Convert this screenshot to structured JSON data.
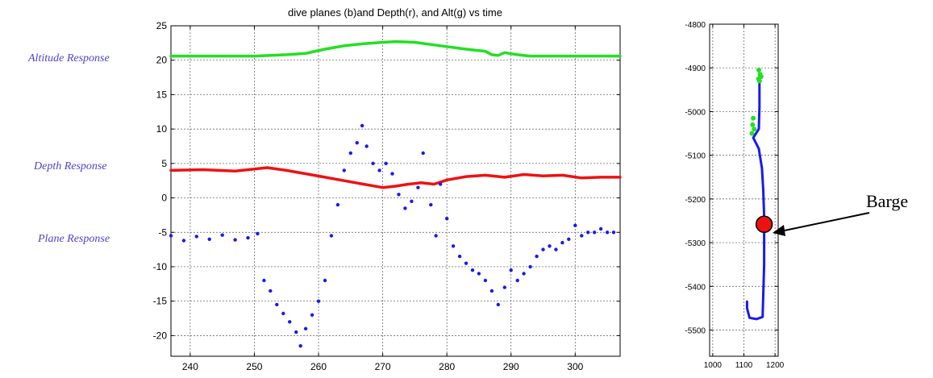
{
  "labels": {
    "altitude": "Altitude Response",
    "depth": "Depth Response",
    "plane": "Plane Response",
    "barge": "Barge"
  },
  "colors": {
    "altitude": "#22e022",
    "depth": "#ee1111",
    "plane": "#1a1aee",
    "barge": "#ee1111",
    "label": "#4b45c8"
  },
  "chart_data": [
    {
      "type": "scatter",
      "title": "dive planes (b)and Depth(r), and Alt(g) vs time",
      "xlim": [
        237,
        307
      ],
      "ylim": [
        -23,
        25
      ],
      "xticks": [
        240,
        250,
        260,
        270,
        280,
        290,
        300
      ],
      "yticks": [
        -20,
        -15,
        -10,
        -5,
        0,
        5,
        10,
        15,
        20,
        25
      ],
      "grid": true,
      "series": [
        {
          "key": "altitude",
          "style": "line",
          "points": [
            [
              237,
              20.6
            ],
            [
              245,
              20.6
            ],
            [
              250,
              20.6
            ],
            [
              255,
              20.8
            ],
            [
              258,
              21.0
            ],
            [
              261,
              21.6
            ],
            [
              264,
              22.1
            ],
            [
              267,
              22.4
            ],
            [
              270,
              22.6
            ],
            [
              272,
              22.7
            ],
            [
              275,
              22.6
            ],
            [
              279,
              22.1
            ],
            [
              283,
              21.6
            ],
            [
              286,
              21.3
            ],
            [
              287,
              20.8
            ],
            [
              288,
              20.7
            ],
            [
              289,
              21.1
            ],
            [
              291,
              20.8
            ],
            [
              293,
              20.6
            ],
            [
              300,
              20.6
            ],
            [
              307,
              20.6
            ]
          ]
        },
        {
          "key": "depth",
          "style": "line",
          "points": [
            [
              237,
              4.0
            ],
            [
              242,
              4.1
            ],
            [
              247,
              3.9
            ],
            [
              250,
              4.2
            ],
            [
              252,
              4.4
            ],
            [
              255,
              4.0
            ],
            [
              258,
              3.5
            ],
            [
              261,
              3.0
            ],
            [
              264,
              2.5
            ],
            [
              267,
              2.0
            ],
            [
              270,
              1.5
            ],
            [
              272,
              1.7
            ],
            [
              274,
              2.0
            ],
            [
              276,
              2.2
            ],
            [
              278,
              2.0
            ],
            [
              280,
              2.6
            ],
            [
              283,
              3.1
            ],
            [
              286,
              3.3
            ],
            [
              289,
              3.0
            ],
            [
              292,
              3.4
            ],
            [
              295,
              3.2
            ],
            [
              298,
              3.3
            ],
            [
              301,
              2.9
            ],
            [
              304,
              3.0
            ],
            [
              307,
              3.0
            ]
          ]
        },
        {
          "key": "plane",
          "style": "dots",
          "points": [
            [
              237,
              -5.5
            ],
            [
              239,
              -6.2
            ],
            [
              241,
              -5.6
            ],
            [
              243,
              -6.0
            ],
            [
              245,
              -5.4
            ],
            [
              247,
              -6.1
            ],
            [
              249,
              -5.8
            ],
            [
              250.5,
              -5.2
            ],
            [
              251.5,
              -12.0
            ],
            [
              252.5,
              -13.5
            ],
            [
              253.5,
              -15.5
            ],
            [
              254.5,
              -16.8
            ],
            [
              255.5,
              -18.0
            ],
            [
              256.5,
              -19.5
            ],
            [
              257.2,
              -21.5
            ],
            [
              258,
              -19.0
            ],
            [
              259,
              -17.0
            ],
            [
              260,
              -15.0
            ],
            [
              261,
              -12.0
            ],
            [
              262,
              -5.5
            ],
            [
              263,
              -1.0
            ],
            [
              264,
              4.0
            ],
            [
              265,
              6.5
            ],
            [
              266,
              8.0
            ],
            [
              266.8,
              10.5
            ],
            [
              267.5,
              7.5
            ],
            [
              268.5,
              5.0
            ],
            [
              269.5,
              4.0
            ],
            [
              270.5,
              5.0
            ],
            [
              271.5,
              3.5
            ],
            [
              272.5,
              0.5
            ],
            [
              273.5,
              -1.5
            ],
            [
              274.5,
              -0.5
            ],
            [
              275.5,
              1.5
            ],
            [
              276.3,
              6.5
            ],
            [
              277.5,
              -1.0
            ],
            [
              278.3,
              -5.5
            ],
            [
              279,
              2.0
            ],
            [
              280,
              -3.0
            ],
            [
              281,
              -7.0
            ],
            [
              282,
              -8.5
            ],
            [
              283,
              -9.5
            ],
            [
              284,
              -10.5
            ],
            [
              285,
              -11.0
            ],
            [
              286,
              -12.0
            ],
            [
              287,
              -13.5
            ],
            [
              288,
              -15.5
            ],
            [
              289,
              -13.0
            ],
            [
              290,
              -10.5
            ],
            [
              291,
              -12.0
            ],
            [
              292,
              -11.0
            ],
            [
              293,
              -10.0
            ],
            [
              294,
              -8.5
            ],
            [
              295,
              -7.5
            ],
            [
              296,
              -7.0
            ],
            [
              297,
              -7.5
            ],
            [
              298,
              -6.5
            ],
            [
              299,
              -6.0
            ],
            [
              300,
              -4.0
            ],
            [
              301,
              -5.5
            ],
            [
              302,
              -5.0
            ],
            [
              303,
              -5.0
            ],
            [
              304,
              -4.5
            ],
            [
              305,
              -5.0
            ],
            [
              306,
              -5.0
            ]
          ]
        }
      ]
    },
    {
      "type": "line",
      "title": "",
      "xlim": [
        990,
        1210
      ],
      "ylim": [
        -5560,
        -4800
      ],
      "xticks": [
        1000,
        1100,
        1200
      ],
      "yticks": [
        -4800,
        -4900,
        -5000,
        -5100,
        -5200,
        -5300,
        -5400,
        -5500
      ],
      "grid": true,
      "series": [
        {
          "key": "plane",
          "style": "line",
          "points": [
            [
              1150,
              -4920
            ],
            [
              1150,
              -4990
            ],
            [
              1148,
              -5040
            ],
            [
              1130,
              -5060
            ],
            [
              1148,
              -5085
            ],
            [
              1158,
              -5130
            ],
            [
              1162,
              -5180
            ],
            [
              1165,
              -5240
            ],
            [
              1165,
              -5350
            ],
            [
              1162,
              -5420
            ],
            [
              1160,
              -5470
            ],
            [
              1140,
              -5475
            ],
            [
              1118,
              -5472
            ],
            [
              1110,
              -5450
            ],
            [
              1110,
              -5435
            ]
          ]
        },
        {
          "key": "altitude",
          "style": "dots",
          "points": [
            [
              1148,
              -4905
            ],
            [
              1152,
              -4915
            ],
            [
              1155,
              -4920
            ],
            [
              1150,
              -4930
            ],
            [
              1147,
              -4925
            ],
            [
              1130,
              -5015
            ],
            [
              1128,
              -5030
            ],
            [
              1133,
              -5040
            ],
            [
              1126,
              -5050
            ]
          ]
        }
      ],
      "marker": {
        "label_key": "barge",
        "x": 1165,
        "y": -5258
      }
    }
  ]
}
